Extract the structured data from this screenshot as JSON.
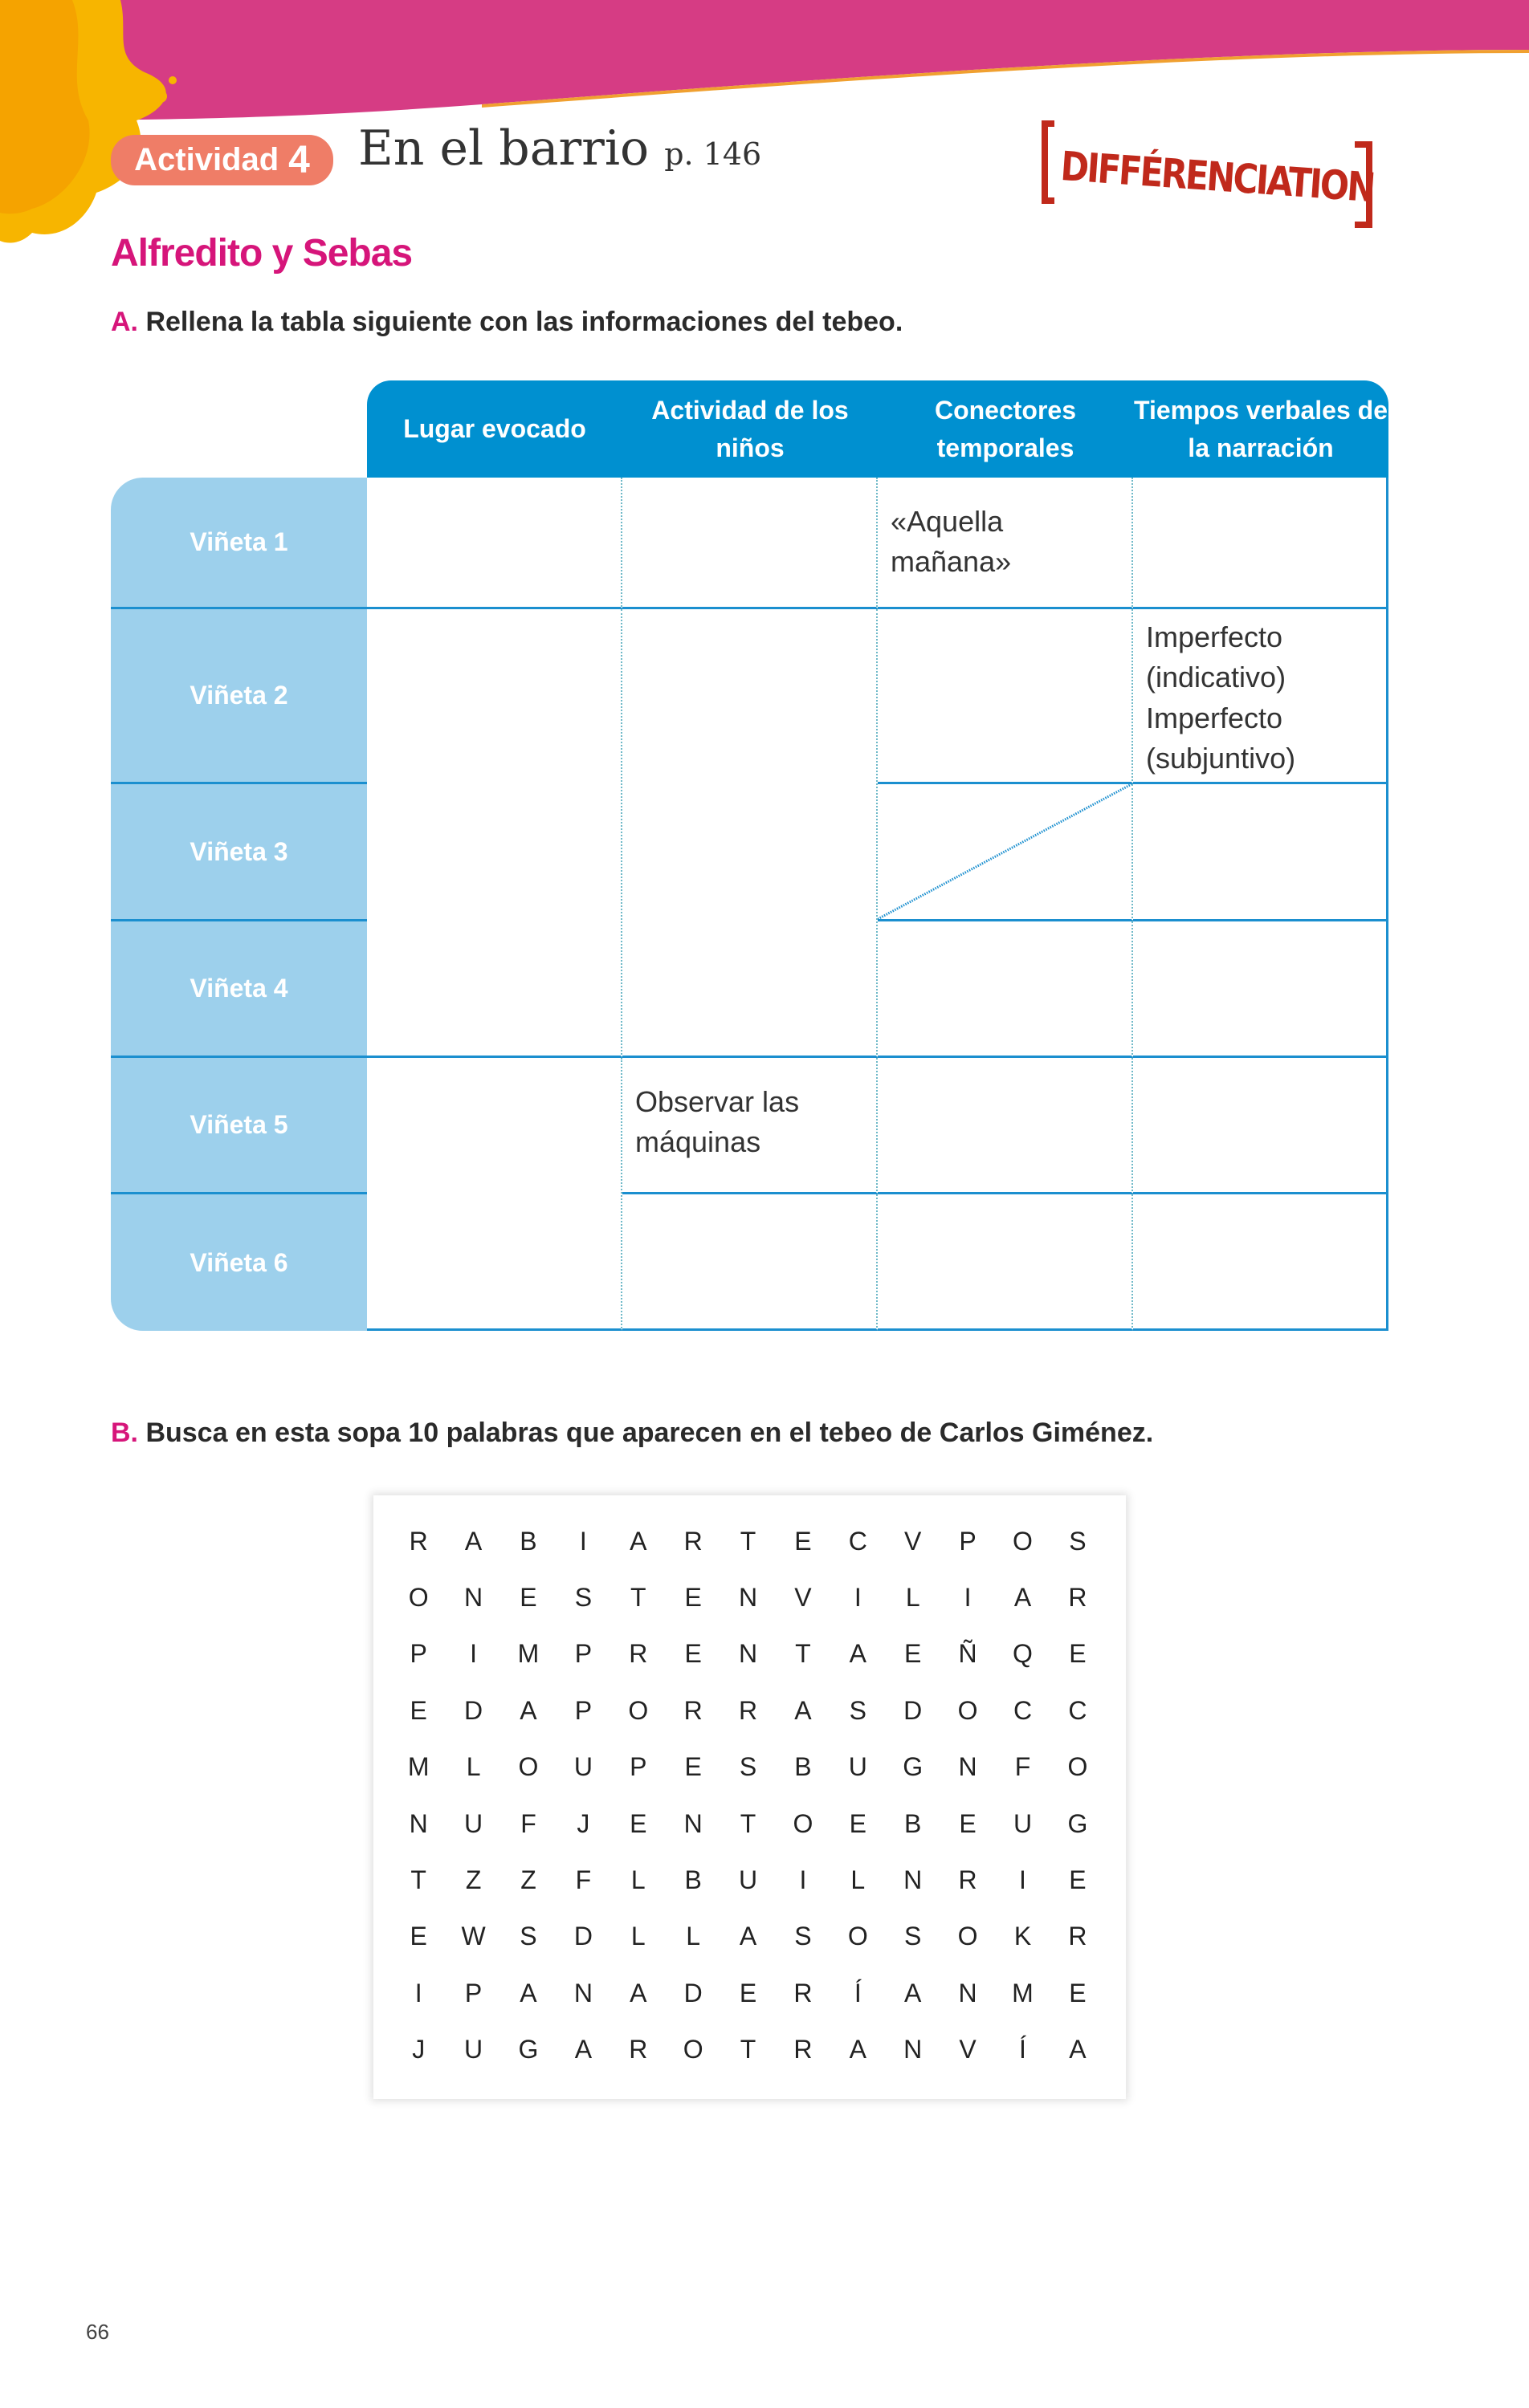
{
  "header": {
    "activity_label": "Actividad",
    "activity_number": "4",
    "title": "En el barrio",
    "page_ref": "p. 146",
    "stamp": "DIFFÉRENCIATION",
    "colors": {
      "banner": "#d63c84",
      "splash": "#f7b500",
      "pill": "#ef7d67",
      "stamp": "#c0291b"
    }
  },
  "section_title": "Alfredito y Sebas",
  "part_a": {
    "letter": "A.",
    "instruction": "Rellena la tabla siguiente con las informaciones del tebeo.",
    "columns": [
      "Lugar evocado",
      "Actividad de los niños",
      "Conectores temporales",
      "Tiempos verbales de la narración"
    ],
    "rows": [
      "Viñeta 1",
      "Viñeta 2",
      "Viñeta 3",
      "Viñeta 4",
      "Viñeta 5",
      "Viñeta 6"
    ],
    "cells": {
      "v1_conectores": "«Aquella mañana»",
      "v2_tiempos": "Imperfecto (indicativo) Imperfecto (subjuntivo)",
      "v5_actividad": "Observar las máquinas"
    },
    "colors": {
      "header": "#0090d0",
      "row_label": "#9dd0ec",
      "lines": "#1b8fcf"
    }
  },
  "part_b": {
    "letter": "B.",
    "instruction": "Busca en esta sopa 10 palabras que aparecen en el tebeo de Carlos Giménez.",
    "grid": [
      "RABIARTECVPOS",
      "ONESTENVILIAR",
      "PIMPRENTAEÑQE",
      "EDAPORRASDOCC",
      "MLOUPESBUGNFO",
      "NUFJENTOEBEUG",
      "TZZFLBUILNRIE",
      "EWSDLLASOSOKR",
      "IPANADERÍANME",
      "JUGAROTRANVÍA"
    ]
  },
  "page_number": "66"
}
